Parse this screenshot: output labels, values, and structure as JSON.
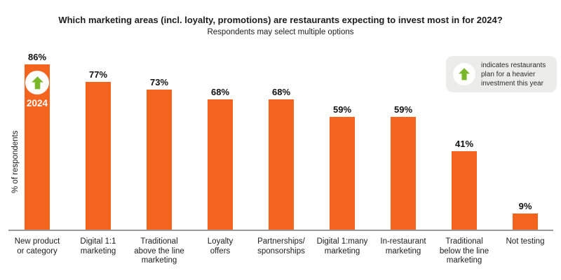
{
  "colors": {
    "bar": "#F5641E",
    "arrow": "#7AB829",
    "axis": "#9A9A9A",
    "legend_bg": "#ECECEA",
    "text": "#1C1C1C"
  },
  "legend": {
    "icon": "up-arrow-icon",
    "text": "indicates restaurants plan for a heavier investment this year"
  },
  "chart_data": {
    "type": "bar",
    "title": "Which marketing areas (incl. loyalty, promotions) are restaurants expecting to invest most in for 2024?",
    "subtitle": "Respondents may select multiple options",
    "categories": [
      "New product or category",
      "Digital 1:1 marketing",
      "Traditional above the line marketing",
      "Loyalty offers",
      "Partnerships/sponsorships",
      "Digital 1:many marketing",
      "In-restaurant marketing",
      "Traditional below the line marketing",
      "Not testing"
    ],
    "category_lines": [
      [
        "New product",
        "or category"
      ],
      [
        "Digital 1:1",
        "marketing"
      ],
      [
        "Traditional",
        "above the line",
        "marketing"
      ],
      [
        "Loyalty",
        "offers"
      ],
      [
        "Partnerships/",
        "sponsorships"
      ],
      [
        "Digital 1:many",
        "marketing"
      ],
      [
        "In-restaurant",
        "marketing"
      ],
      [
        "Traditional",
        "below the line",
        "marketing"
      ],
      [
        "Not testing"
      ]
    ],
    "values": [
      86,
      77,
      73,
      68,
      68,
      59,
      59,
      41,
      9
    ],
    "value_labels": [
      "86%",
      "77%",
      "73%",
      "68%",
      "68%",
      "59%",
      "59%",
      "41%",
      "9%"
    ],
    "xlabel": "",
    "ylabel": "% of respondents",
    "ylim": [
      0,
      100
    ],
    "grid": false,
    "bar_color": "#F5641E",
    "legend_position": "top-right",
    "highlight": {
      "bar_index": 0,
      "category": "New product or category",
      "marker": "green-up-arrow",
      "year": "2024",
      "meaning": "indicates restaurants plan for a heavier investment this year"
    }
  }
}
